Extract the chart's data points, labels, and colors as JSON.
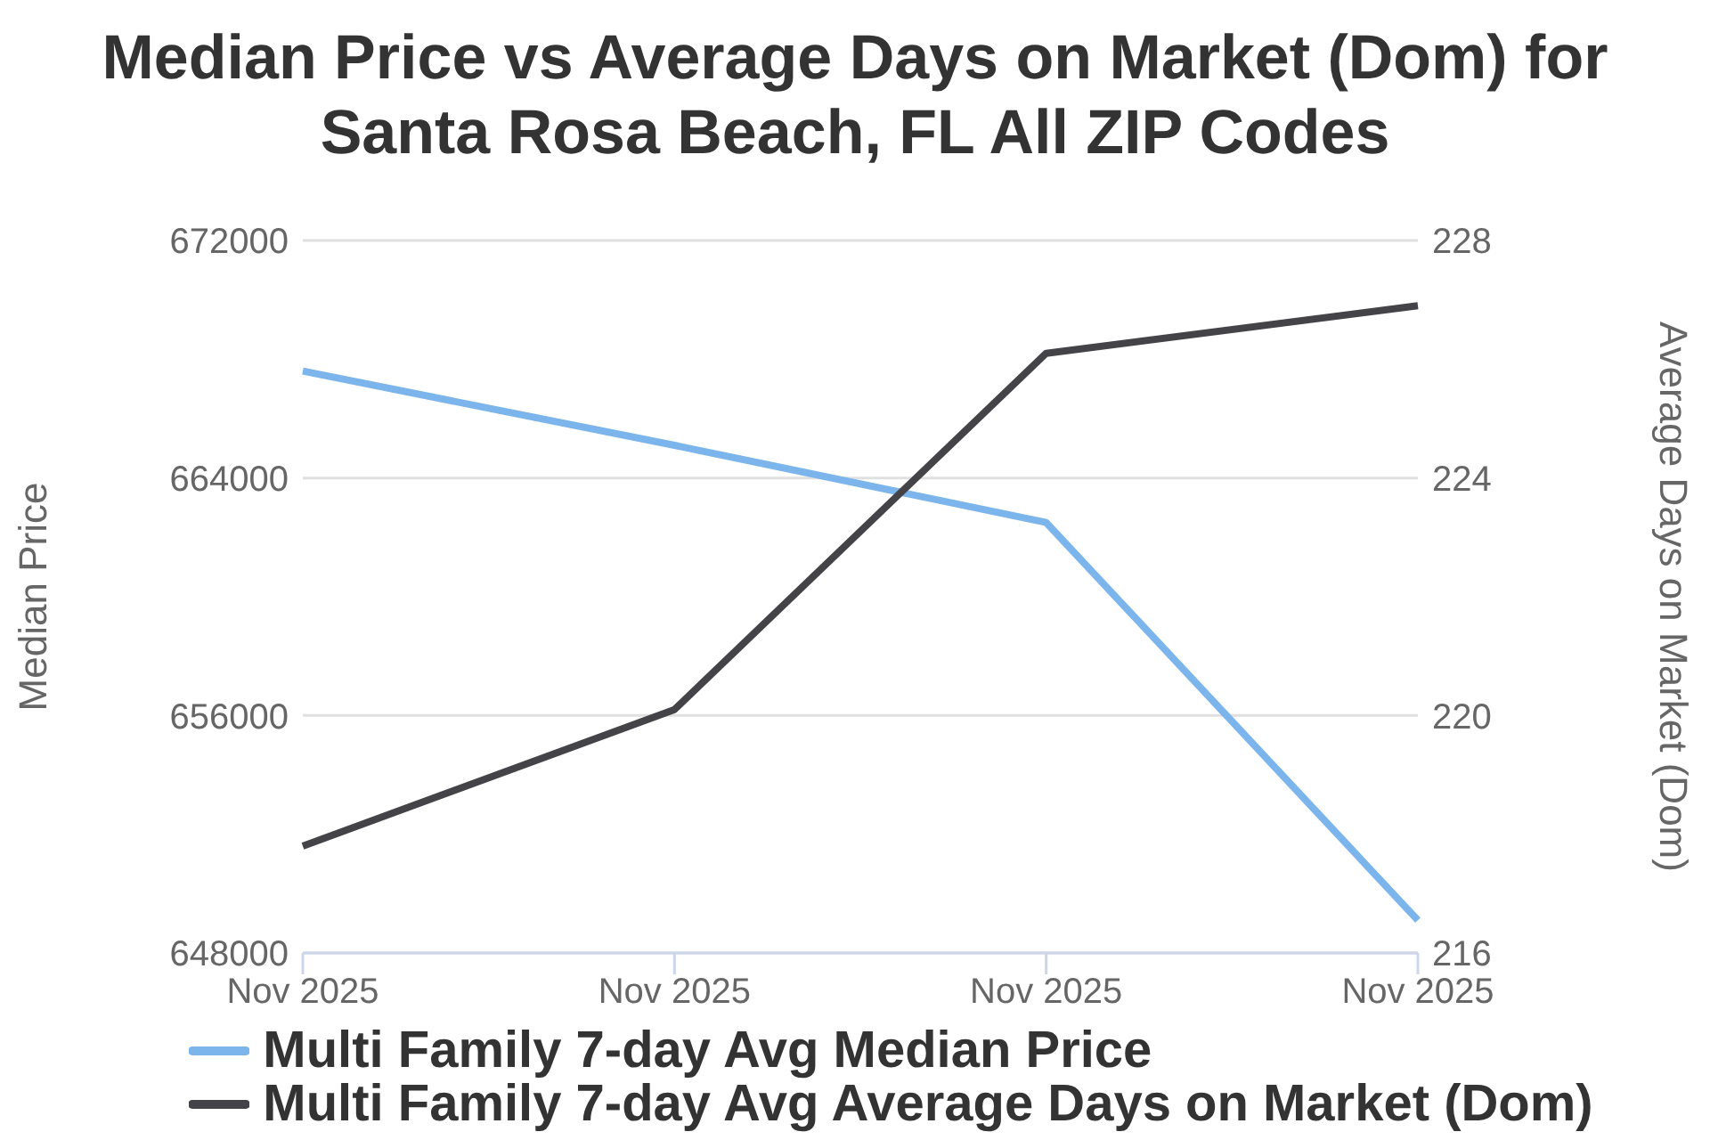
{
  "chart_data": {
    "type": "line",
    "title": "Median Price vs Average Days on Market (Dom) for Santa Rosa Beach, FL All ZIP Codes",
    "ylabel": "Median Price",
    "y2label": "Average Days on Market (Dom)",
    "categories": [
      "Nov 2025",
      "Nov 2025",
      "Nov 2025",
      "Nov 2025"
    ],
    "series": [
      {
        "name": "Multi Family 7-day Avg Median Price",
        "color": "#7cb5ec",
        "values": [
          667600,
          665100,
          662500,
          649100
        ]
      },
      {
        "name": "Multi Family 7-day Avg Average Days on Market (Dom)",
        "color": "#434348",
        "values": [
          217.8,
          220.1,
          226.1,
          226.9
        ],
        "axis": "y2"
      }
    ],
    "ylim": [
      648000,
      672000
    ],
    "yticks": [
      648000,
      656000,
      664000,
      672000
    ],
    "y2lim": [
      216,
      228
    ],
    "y2ticks": [
      216,
      220,
      224,
      228
    ],
    "grid": "y",
    "legend": "bottom",
    "marker": "none",
    "line_style": "solid"
  }
}
